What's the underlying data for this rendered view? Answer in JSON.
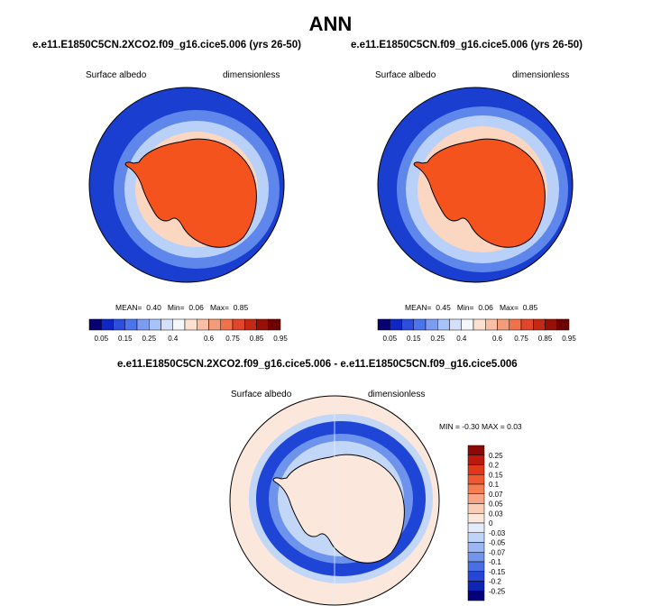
{
  "figure": {
    "title": "ANN",
    "panels": [
      {
        "title": "e.e11.E1850C5CN.2XCO2.f09_g16.cice5.006 (yrs 26-50)",
        "variable": "Surface albedo",
        "units": "dimensionless",
        "stats": {
          "mean_label": "MEAN=",
          "mean": "0.40",
          "min_label": "Min=",
          "min": "0.06",
          "max_label": "Max=",
          "max": "0.85"
        }
      },
      {
        "title": "e.e11.E1850C5CN.f09_g16.cice5.006 (yrs 26-50)",
        "variable": "Surface albedo",
        "units": "dimensionless",
        "stats": {
          "mean_label": "MEAN=",
          "mean": "0.45",
          "min_label": "Min=",
          "min": "0.06",
          "max_label": "Max=",
          "max": "0.85"
        }
      },
      {
        "title": "e.e11.E1850C5CN.2XCO2.f09_g16.cice5.006 - e.e11.E1850C5CN.f09_g16.cice5.006",
        "variable": "Surface albedo",
        "units": "dimensionless",
        "minmax": "MIN =  -0.30 MAX =   0.03"
      }
    ],
    "colorbar_horizontal": {
      "labels": [
        "0.05",
        "0.15",
        "0.25",
        "0.4",
        "0.6",
        "0.75",
        "0.85",
        "0.95"
      ],
      "colors": [
        "#08006e",
        "#0d26c4",
        "#2b4de0",
        "#4c74ec",
        "#7a9cf3",
        "#a8c3f7",
        "#d3e2fa",
        "#f4f7fc",
        "#fbe1d2",
        "#f9c0a5",
        "#f59b78",
        "#ef724a",
        "#e0472a",
        "#c22a14",
        "#990f08",
        "#6e0202"
      ]
    },
    "colorbar_vertical": {
      "labels": [
        "0.25",
        "0.2",
        "0.15",
        "0.1",
        "0.07",
        "0.05",
        "0.03",
        "0",
        "-0.03",
        "-0.05",
        "-0.07",
        "-0.1",
        "-0.15",
        "-0.2",
        "-0.25"
      ],
      "colors": [
        "#8b0a05",
        "#bb1a0c",
        "#e0381a",
        "#f0592f",
        "#f47f55",
        "#f8a586",
        "#fbccb6",
        "#fbe7dc",
        "#e4ecfb",
        "#c0d3f8",
        "#9bb6f3",
        "#7394ec",
        "#4a6ee4",
        "#2647d6",
        "#0d24b4",
        "#05007a"
      ]
    },
    "map_colors": {
      "ocean_open": "#1a3fd0",
      "sea_ice_outer": "#5f86ea",
      "sea_ice_mid": "#b9d0f8",
      "sea_ice_inner": "#fbd7c2",
      "ice_sheet": "#f5531e",
      "diff_background": "#fbe7dc",
      "diff_strong": "#1f45d6",
      "diff_moderate": "#6e93ec",
      "diff_weak": "#c2d6f8",
      "coastline": "#000000"
    }
  }
}
